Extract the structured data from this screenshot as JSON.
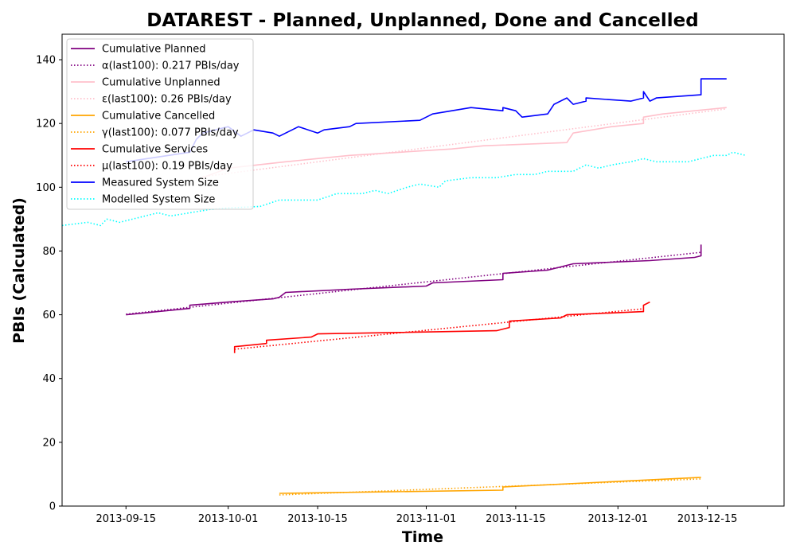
{
  "chart_data": {
    "type": "line",
    "title": "DATAREST - Planned, Unplanned, Done  and Cancelled",
    "xlabel": "Time",
    "ylabel": "PBIs (Calculated)",
    "xlim": [
      "2013-09-05",
      "2013-12-27"
    ],
    "ylim": [
      0,
      148
    ],
    "x_ticks": [
      "2013-09-15",
      "2013-10-01",
      "2013-10-15",
      "2013-11-01",
      "2013-11-15",
      "2013-12-01",
      "2013-12-15"
    ],
    "y_ticks": [
      0,
      20,
      40,
      60,
      80,
      100,
      120,
      140
    ],
    "grid": false,
    "legend_position": "top-left",
    "series": [
      {
        "name": "Cumulative Planned",
        "color": "#800080",
        "style": "solid",
        "points": [
          [
            "2013-09-15",
            60
          ],
          [
            "2013-09-25",
            62
          ],
          [
            "2013-09-25",
            63
          ],
          [
            "2013-10-01",
            64
          ],
          [
            "2013-10-08",
            65
          ],
          [
            "2013-10-09",
            65.5
          ],
          [
            "2013-10-10",
            67
          ],
          [
            "2013-10-20",
            68
          ],
          [
            "2013-11-01",
            69
          ],
          [
            "2013-11-02",
            70
          ],
          [
            "2013-11-13",
            71
          ],
          [
            "2013-11-13",
            73
          ],
          [
            "2013-11-20",
            74
          ],
          [
            "2013-11-22",
            75
          ],
          [
            "2013-11-24",
            76
          ],
          [
            "2013-12-06",
            77
          ],
          [
            "2013-12-13",
            78
          ],
          [
            "2013-12-14",
            78.5
          ],
          [
            "2013-12-14",
            82
          ]
        ]
      },
      {
        "name": "α(last100): 0.217 PBIs/day",
        "color": "#800080",
        "style": "dotted",
        "points": [
          [
            "2013-09-15",
            60.2
          ],
          [
            "2013-12-14",
            79.6
          ]
        ]
      },
      {
        "name": "Cumulative Unplanned",
        "color": "#ffc0cb",
        "style": "solid",
        "points": [
          [
            "2013-09-27",
            103
          ],
          [
            "2013-10-01",
            106
          ],
          [
            "2013-10-10",
            108
          ],
          [
            "2013-10-20",
            110
          ],
          [
            "2013-11-05",
            112
          ],
          [
            "2013-11-10",
            113
          ],
          [
            "2013-11-23",
            114
          ],
          [
            "2013-11-24",
            117
          ],
          [
            "2013-11-30",
            119
          ],
          [
            "2013-12-05",
            120
          ],
          [
            "2013-12-05",
            122
          ],
          [
            "2013-12-08",
            123
          ],
          [
            "2013-12-18",
            125
          ]
        ]
      },
      {
        "name": "ε(last100): 0.26 PBIs/day",
        "color": "#ffc0cb",
        "style": "dotted",
        "points": [
          [
            "2013-09-27",
            103.3
          ],
          [
            "2013-12-18",
            124.6
          ]
        ]
      },
      {
        "name": "Cumulative Cancelled",
        "color": "#ffa500",
        "style": "solid",
        "points": [
          [
            "2013-10-09",
            4
          ],
          [
            "2013-11-13",
            5
          ],
          [
            "2013-11-13",
            6
          ],
          [
            "2013-12-14",
            9
          ]
        ]
      },
      {
        "name": "γ(last100): 0.077 PBIs/day",
        "color": "#ffa500",
        "style": "dotted",
        "points": [
          [
            "2013-10-09",
            3.5
          ],
          [
            "2013-12-14",
            8.5
          ]
        ]
      },
      {
        "name": "Cumulative Services",
        "color": "#ff0000",
        "style": "solid",
        "points": [
          [
            "2013-10-02",
            48
          ],
          [
            "2013-10-02",
            50
          ],
          [
            "2013-10-07",
            51
          ],
          [
            "2013-10-07",
            52
          ],
          [
            "2013-10-14",
            53
          ],
          [
            "2013-10-15",
            54
          ],
          [
            "2013-11-12",
            55
          ],
          [
            "2013-11-14",
            56
          ],
          [
            "2013-11-14",
            58
          ],
          [
            "2013-11-22",
            59
          ],
          [
            "2013-11-23",
            60
          ],
          [
            "2013-12-05",
            61
          ],
          [
            "2013-12-05",
            63
          ],
          [
            "2013-12-06",
            64
          ]
        ]
      },
      {
        "name": "μ(last100): 0.19 PBIs/day",
        "color": "#ff0000",
        "style": "dotted",
        "points": [
          [
            "2013-10-02",
            49.2
          ],
          [
            "2013-12-05",
            61.9
          ]
        ]
      },
      {
        "name": "Measured System Size",
        "color": "#0000ff",
        "style": "solid",
        "points": [
          [
            "2013-09-15",
            108
          ],
          [
            "2013-09-25",
            111
          ],
          [
            "2013-09-26",
            115
          ],
          [
            "2013-09-27",
            117
          ],
          [
            "2013-10-01",
            119
          ],
          [
            "2013-10-03",
            116
          ],
          [
            "2013-10-05",
            118
          ],
          [
            "2013-10-08",
            117
          ],
          [
            "2013-10-09",
            116
          ],
          [
            "2013-10-10",
            117
          ],
          [
            "2013-10-11",
            118
          ],
          [
            "2013-10-12",
            119
          ],
          [
            "2013-10-15",
            117
          ],
          [
            "2013-10-16",
            118
          ],
          [
            "2013-10-20",
            119
          ],
          [
            "2013-10-21",
            120
          ],
          [
            "2013-10-31",
            121
          ],
          [
            "2013-11-02",
            123
          ],
          [
            "2013-11-05",
            124
          ],
          [
            "2013-11-08",
            125
          ],
          [
            "2013-11-13",
            124
          ],
          [
            "2013-11-13",
            125
          ],
          [
            "2013-11-15",
            124
          ],
          [
            "2013-11-16",
            122
          ],
          [
            "2013-11-20",
            123
          ],
          [
            "2013-11-21",
            126
          ],
          [
            "2013-11-23",
            128
          ],
          [
            "2013-11-24",
            126
          ],
          [
            "2013-11-26",
            127
          ],
          [
            "2013-11-26",
            128
          ],
          [
            "2013-12-03",
            127
          ],
          [
            "2013-12-05",
            128
          ],
          [
            "2013-12-05",
            130
          ],
          [
            "2013-12-06",
            127
          ],
          [
            "2013-12-07",
            128
          ],
          [
            "2013-12-14",
            129
          ],
          [
            "2013-12-14",
            134
          ],
          [
            "2013-12-18",
            134
          ]
        ]
      },
      {
        "name": "Modelled System Size",
        "color": "#00ffff",
        "style": "dotted",
        "points": [
          [
            "2013-09-05",
            88
          ],
          [
            "2013-09-09",
            89
          ],
          [
            "2013-09-11",
            88
          ],
          [
            "2013-09-12",
            90
          ],
          [
            "2013-09-14",
            89
          ],
          [
            "2013-09-16",
            90
          ],
          [
            "2013-09-20",
            92
          ],
          [
            "2013-09-22",
            91
          ],
          [
            "2013-09-25",
            92
          ],
          [
            "2013-09-28",
            93
          ],
          [
            "2013-10-01",
            93.5
          ],
          [
            "2013-10-06",
            94
          ],
          [
            "2013-10-09",
            96
          ],
          [
            "2013-10-15",
            96
          ],
          [
            "2013-10-18",
            98
          ],
          [
            "2013-10-22",
            98
          ],
          [
            "2013-10-24",
            99
          ],
          [
            "2013-10-26",
            98
          ],
          [
            "2013-10-29",
            100
          ],
          [
            "2013-10-31",
            101
          ],
          [
            "2013-11-03",
            100
          ],
          [
            "2013-11-04",
            102
          ],
          [
            "2013-11-08",
            103
          ],
          [
            "2013-11-12",
            103
          ],
          [
            "2013-11-15",
            104
          ],
          [
            "2013-11-18",
            104
          ],
          [
            "2013-11-20",
            105
          ],
          [
            "2013-11-24",
            105
          ],
          [
            "2013-11-26",
            107
          ],
          [
            "2013-11-28",
            106
          ],
          [
            "2013-11-30",
            107
          ],
          [
            "2013-12-03",
            108
          ],
          [
            "2013-12-05",
            109
          ],
          [
            "2013-12-07",
            108
          ],
          [
            "2013-12-12",
            108
          ],
          [
            "2013-12-14",
            109
          ],
          [
            "2013-12-16",
            110
          ],
          [
            "2013-12-18",
            110
          ],
          [
            "2013-12-19",
            111
          ],
          [
            "2013-12-21",
            110
          ]
        ]
      }
    ]
  }
}
